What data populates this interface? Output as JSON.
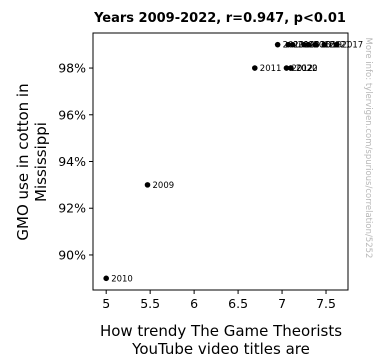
{
  "chart_data": {
    "type": "scatter",
    "title": "Years 2009-2022, r=0.947, p<0.01",
    "xlabel_lines": [
      "How trendy The Game Theorists",
      "YouTube video titles are"
    ],
    "ylabel_lines": [
      "GMO use in cotton in",
      "Mississippi"
    ],
    "side_note": "More info: tylervigen.com/spurious/correlation/5252",
    "xlim": [
      4.85,
      7.75
    ],
    "ylim": [
      88.5,
      99.5
    ],
    "xticks": [
      5,
      5.5,
      6,
      6.5,
      7,
      7.5
    ],
    "xtick_labels": [
      "5",
      "5.5",
      "6",
      "6.5",
      "7",
      "7.5"
    ],
    "yticks": [
      90,
      92,
      94,
      96,
      98
    ],
    "ytick_labels": [
      "90%",
      "92%",
      "94%",
      "96%",
      "98%"
    ],
    "grid": false,
    "point_color": "#000000",
    "points": [
      {
        "label": "2009",
        "x": 5.47,
        "y": 93
      },
      {
        "label": "2010",
        "x": 5.0,
        "y": 89
      },
      {
        "label": "2011",
        "x": 6.69,
        "y": 98
      },
      {
        "label": "2012",
        "x": 7.05,
        "y": 98
      },
      {
        "label": "2013",
        "x": 6.95,
        "y": 99
      },
      {
        "label": "2014",
        "x": 7.07,
        "y": 99
      },
      {
        "label": "2015",
        "x": 7.12,
        "y": 99
      },
      {
        "label": "2016",
        "x": 7.3,
        "y": 99
      },
      {
        "label": "2017",
        "x": 7.62,
        "y": 99
      },
      {
        "label": "2018",
        "x": 7.25,
        "y": 99
      },
      {
        "label": "2019",
        "x": 7.38,
        "y": 99
      },
      {
        "label": "2020",
        "x": 7.1,
        "y": 98
      },
      {
        "label": "2021",
        "x": 7.48,
        "y": 99
      },
      {
        "label": "2022",
        "x": 7.1,
        "y": 98
      }
    ]
  }
}
